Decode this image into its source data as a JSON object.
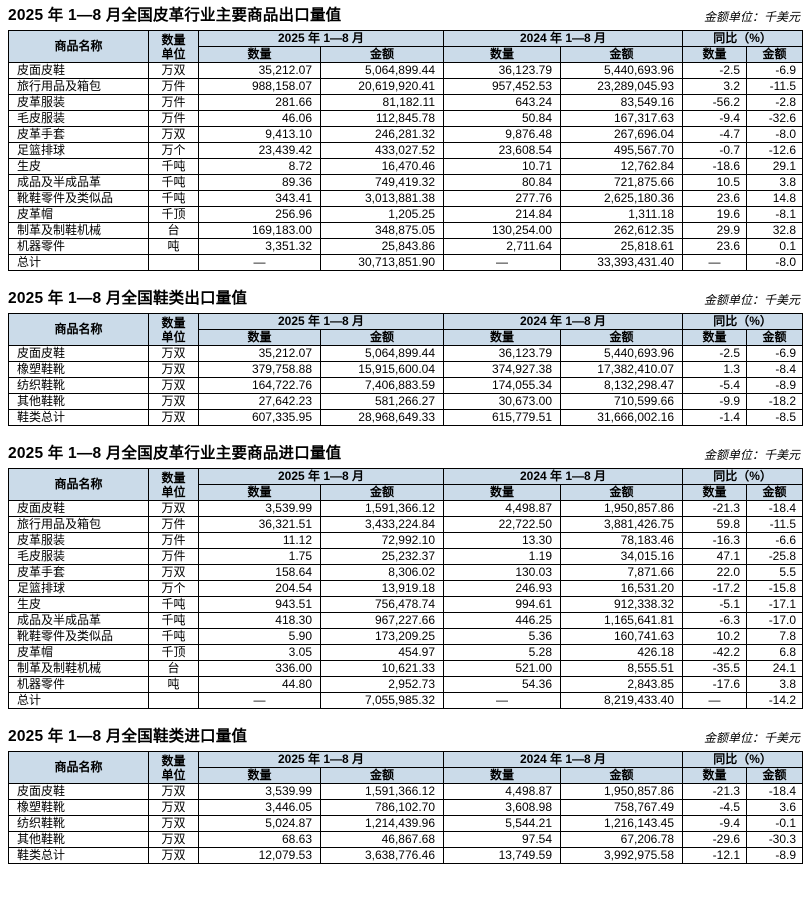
{
  "page": {
    "unit_note": "金额单位：千美元"
  },
  "colors": {
    "header_bg": "#cbdbe9",
    "border": "#000000",
    "text": "#000000"
  },
  "table_header": {
    "product": "商品名称",
    "unit_line1": "数量",
    "unit_line2": "单位",
    "period_2025": "2025 年 1—8 月",
    "period_2024": "2024 年 1—8 月",
    "yoy": "同比（%）",
    "qty": "数量",
    "amount": "金额"
  },
  "tables": [
    {
      "id": "leather-export",
      "title": "2025 年 1—8 月全国皮革行业主要商品出口量值",
      "rows": [
        [
          "皮面皮鞋",
          "万双",
          "35,212.07",
          "5,064,899.44",
          "36,123.79",
          "5,440,693.96",
          "-2.5",
          "-6.9"
        ],
        [
          "旅行用品及箱包",
          "万件",
          "988,158.07",
          "20,619,920.41",
          "957,452.53",
          "23,289,045.93",
          "3.2",
          "-11.5"
        ],
        [
          "皮革服装",
          "万件",
          "281.66",
          "81,182.11",
          "643.24",
          "83,549.16",
          "-56.2",
          "-2.8"
        ],
        [
          "毛皮服装",
          "万件",
          "46.06",
          "112,845.78",
          "50.84",
          "167,317.63",
          "-9.4",
          "-32.6"
        ],
        [
          "皮革手套",
          "万双",
          "9,413.10",
          "246,281.32",
          "9,876.48",
          "267,696.04",
          "-4.7",
          "-8.0"
        ],
        [
          "足篮排球",
          "万个",
          "23,439.42",
          "433,027.52",
          "23,608.54",
          "495,567.70",
          "-0.7",
          "-12.6"
        ],
        [
          "生皮",
          "千吨",
          "8.72",
          "16,470.46",
          "10.71",
          "12,762.84",
          "-18.6",
          "29.1"
        ],
        [
          "成品及半成品革",
          "千吨",
          "89.36",
          "749,419.32",
          "80.84",
          "721,875.66",
          "10.5",
          "3.8"
        ],
        [
          "靴鞋零件及类似品",
          "千吨",
          "343.41",
          "3,013,881.38",
          "277.76",
          "2,625,180.36",
          "23.6",
          "14.8"
        ],
        [
          "皮革帽",
          "千顶",
          "256.96",
          "1,205.25",
          "214.84",
          "1,311.18",
          "19.6",
          "-8.1"
        ],
        [
          "制革及制鞋机械",
          "台",
          "169,183.00",
          "348,875.05",
          "130,254.00",
          "262,612.35",
          "29.9",
          "32.8"
        ],
        [
          "机器零件",
          "吨",
          "3,351.32",
          "25,843.86",
          "2,711.64",
          "25,818.61",
          "23.6",
          "0.1"
        ],
        [
          "总计",
          "",
          "—",
          "30,713,851.90",
          "—",
          "33,393,431.40",
          "—",
          "-8.0"
        ]
      ]
    },
    {
      "id": "footwear-export",
      "title": "2025 年 1—8 月全国鞋类出口量值",
      "rows": [
        [
          "皮面皮鞋",
          "万双",
          "35,212.07",
          "5,064,899.44",
          "36,123.79",
          "5,440,693.96",
          "-2.5",
          "-6.9"
        ],
        [
          "橡塑鞋靴",
          "万双",
          "379,758.88",
          "15,915,600.04",
          "374,927.38",
          "17,382,410.07",
          "1.3",
          "-8.4"
        ],
        [
          "纺织鞋靴",
          "万双",
          "164,722.76",
          "7,406,883.59",
          "174,055.34",
          "8,132,298.47",
          "-5.4",
          "-8.9"
        ],
        [
          "其他鞋靴",
          "万双",
          "27,642.23",
          "581,266.27",
          "30,673.00",
          "710,599.66",
          "-9.9",
          "-18.2"
        ],
        [
          "鞋类总计",
          "万双",
          "607,335.95",
          "28,968,649.33",
          "615,779.51",
          "31,666,002.16",
          "-1.4",
          "-8.5"
        ]
      ]
    },
    {
      "id": "leather-import",
      "title": "2025 年 1—8 月全国皮革行业主要商品进口量值",
      "rows": [
        [
          "皮面皮鞋",
          "万双",
          "3,539.99",
          "1,591,366.12",
          "4,498.87",
          "1,950,857.86",
          "-21.3",
          "-18.4"
        ],
        [
          "旅行用品及箱包",
          "万件",
          "36,321.51",
          "3,433,224.84",
          "22,722.50",
          "3,881,426.75",
          "59.8",
          "-11.5"
        ],
        [
          "皮革服装",
          "万件",
          "11.12",
          "72,992.10",
          "13.30",
          "78,183.46",
          "-16.3",
          "-6.6"
        ],
        [
          "毛皮服装",
          "万件",
          "1.75",
          "25,232.37",
          "1.19",
          "34,015.16",
          "47.1",
          "-25.8"
        ],
        [
          "皮革手套",
          "万双",
          "158.64",
          "8,306.02",
          "130.03",
          "7,871.66",
          "22.0",
          "5.5"
        ],
        [
          "足篮排球",
          "万个",
          "204.54",
          "13,919.18",
          "246.93",
          "16,531.20",
          "-17.2",
          "-15.8"
        ],
        [
          "生皮",
          "千吨",
          "943.51",
          "756,478.74",
          "994.61",
          "912,338.32",
          "-5.1",
          "-17.1"
        ],
        [
          "成品及半成品革",
          "千吨",
          "418.30",
          "967,227.66",
          "446.25",
          "1,165,641.81",
          "-6.3",
          "-17.0"
        ],
        [
          "靴鞋零件及类似品",
          "千吨",
          "5.90",
          "173,209.25",
          "5.36",
          "160,741.63",
          "10.2",
          "7.8"
        ],
        [
          "皮革帽",
          "千顶",
          "3.05",
          "454.97",
          "5.28",
          "426.18",
          "-42.2",
          "6.8"
        ],
        [
          "制革及制鞋机械",
          "台",
          "336.00",
          "10,621.33",
          "521.00",
          "8,555.51",
          "-35.5",
          "24.1"
        ],
        [
          "机器零件",
          "吨",
          "44.80",
          "2,952.73",
          "54.36",
          "2,843.85",
          "-17.6",
          "3.8"
        ],
        [
          "总计",
          "",
          "—",
          "7,055,985.32",
          "—",
          "8,219,433.40",
          "—",
          "-14.2"
        ]
      ]
    },
    {
      "id": "footwear-import",
      "title": "2025 年 1—8 月全国鞋类进口量值",
      "rows": [
        [
          "皮面皮鞋",
          "万双",
          "3,539.99",
          "1,591,366.12",
          "4,498.87",
          "1,950,857.86",
          "-21.3",
          "-18.4"
        ],
        [
          "橡塑鞋靴",
          "万双",
          "3,446.05",
          "786,102.70",
          "3,608.98",
          "758,767.49",
          "-4.5",
          "3.6"
        ],
        [
          "纺织鞋靴",
          "万双",
          "5,024.87",
          "1,214,439.96",
          "5,544.21",
          "1,216,143.45",
          "-9.4",
          "-0.1"
        ],
        [
          "其他鞋靴",
          "万双",
          "68.63",
          "46,867.68",
          "97.54",
          "67,206.78",
          "-29.6",
          "-30.3"
        ],
        [
          "鞋类总计",
          "万双",
          "12,079.53",
          "3,638,776.46",
          "13,749.59",
          "3,992,975.58",
          "-12.1",
          "-8.9"
        ]
      ]
    }
  ]
}
